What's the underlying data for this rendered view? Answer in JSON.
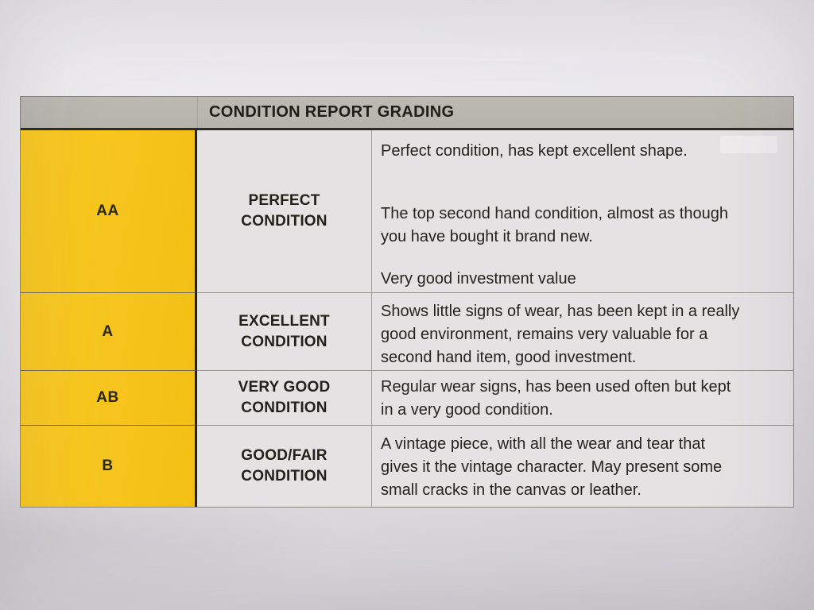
{
  "table": {
    "header": {
      "title": "CONDITION REPORT GRADING"
    },
    "colors": {
      "header_bg": "#b7b4ae",
      "grade_column_bg": "#f6c41c",
      "cell_bg": "#e4e2e3",
      "text": "#26241f"
    },
    "rows": [
      {
        "grade": "AA",
        "condition": [
          "PERFECT",
          "CONDITION"
        ],
        "paragraphs": [
          [
            "Perfect condition, has kept excellent shape."
          ],
          [
            "The top second hand condition, almost as though",
            "you have bought it brand new."
          ],
          [
            "Very good investment value"
          ]
        ]
      },
      {
        "grade": "A",
        "condition": [
          "EXCELLENT",
          "CONDITION"
        ],
        "paragraphs": [
          [
            "Shows little signs of wear, has been kept in a really",
            "good environment, remains very valuable for a",
            "second hand item, good investment."
          ]
        ]
      },
      {
        "grade": "AB",
        "condition": [
          "VERY GOOD",
          "CONDITION"
        ],
        "paragraphs": [
          [
            "Regular wear signs, has been used often but kept",
            "in a very good condition."
          ]
        ]
      },
      {
        "grade": "B",
        "condition": [
          "GOOD/FAIR",
          "CONDITION"
        ],
        "paragraphs": [
          [
            "A vintage piece, with all the wear and tear that",
            "gives it the vintage character. May present some",
            "small cracks in the canvas or leather."
          ]
        ]
      }
    ]
  }
}
